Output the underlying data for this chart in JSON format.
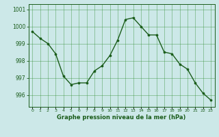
{
  "x": [
    0,
    1,
    2,
    3,
    4,
    5,
    6,
    7,
    8,
    9,
    10,
    11,
    12,
    13,
    14,
    15,
    16,
    17,
    18,
    19,
    20,
    21,
    22,
    23
  ],
  "y": [
    999.7,
    999.3,
    999.0,
    998.4,
    997.1,
    996.6,
    996.7,
    996.7,
    997.4,
    997.7,
    998.3,
    999.2,
    1000.4,
    1000.5,
    1000.0,
    999.5,
    999.5,
    998.5,
    998.4,
    997.8,
    997.5,
    996.7,
    996.1,
    995.7
  ],
  "line_color": "#1a5c1a",
  "marker_color": "#1a5c1a",
  "bg_color": "#cce8e8",
  "grid_color": "#2e8b2e",
  "axis_color": "#1a5c1a",
  "xlabel": "Graphe pression niveau de la mer (hPa)",
  "xlabel_color": "#1a5c1a",
  "yticks": [
    996,
    997,
    998,
    999,
    1000,
    1001
  ],
  "ylim": [
    995.3,
    1001.3
  ],
  "xlim": [
    -0.5,
    23.5
  ],
  "xtick_labels": [
    "0",
    "1",
    "2",
    "3",
    "4",
    "5",
    "6",
    "7",
    "8",
    "9",
    "10",
    "11",
    "12",
    "13",
    "14",
    "15",
    "16",
    "17",
    "18",
    "19",
    "20",
    "21",
    "22",
    "23"
  ]
}
